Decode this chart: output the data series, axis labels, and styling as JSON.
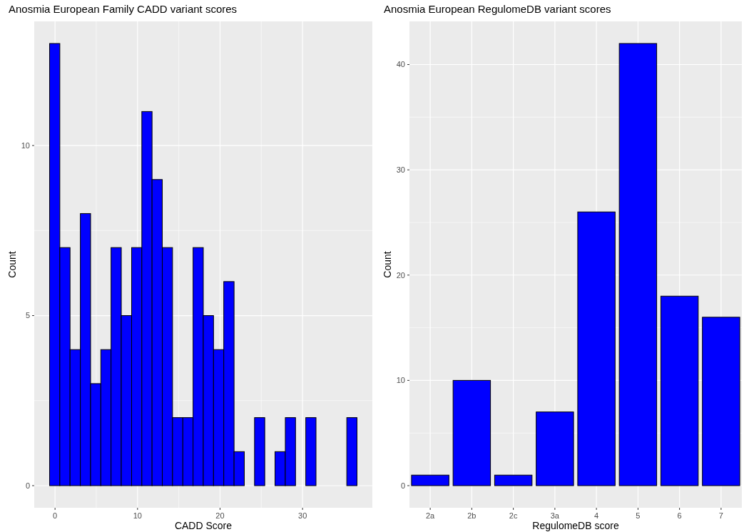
{
  "chart_data": [
    {
      "type": "histogram",
      "title": "Anosmia European Family CADD variant scores",
      "xlabel": "CADD Score",
      "ylabel": "Count",
      "color": "#0000ff",
      "bins": [
        -0.66,
        0.58,
        1.82,
        3.07,
        4.31,
        5.55,
        6.79,
        8.03,
        9.28,
        10.52,
        11.76,
        13.0,
        14.24,
        15.49,
        16.73,
        17.97,
        19.21,
        20.45,
        21.7,
        22.94,
        24.18,
        25.42,
        26.66,
        27.91,
        29.15,
        30.39,
        31.63,
        32.87,
        34.12,
        35.36,
        36.6
      ],
      "values": [
        13,
        7,
        4,
        8,
        3,
        4,
        7,
        5,
        7,
        11,
        9,
        7,
        2,
        2,
        7,
        5,
        4,
        6,
        1,
        0,
        2,
        0,
        1,
        2,
        0,
        2,
        0,
        0,
        0,
        2
      ],
      "xlim": [
        -2.52,
        38.46
      ],
      "xticks": [
        0,
        10,
        20,
        30
      ],
      "ylim": [
        -0.65,
        13.65
      ],
      "yticks": [
        0,
        5,
        10
      ],
      "grid": true
    },
    {
      "type": "bar",
      "title": "Anosmia European RegulomeDB variant scores",
      "xlabel": "RegulomeDB score",
      "ylabel": "Count",
      "color": "#0000ff",
      "categories": [
        "2a",
        "2b",
        "2c",
        "3a",
        "4",
        "5",
        "6",
        "7"
      ],
      "values": [
        1,
        10,
        1,
        7,
        26,
        42,
        18,
        16
      ],
      "ylim": [
        -2.1,
        44.1
      ],
      "yticks": [
        0,
        10,
        20,
        30,
        40
      ],
      "grid": true
    }
  ]
}
